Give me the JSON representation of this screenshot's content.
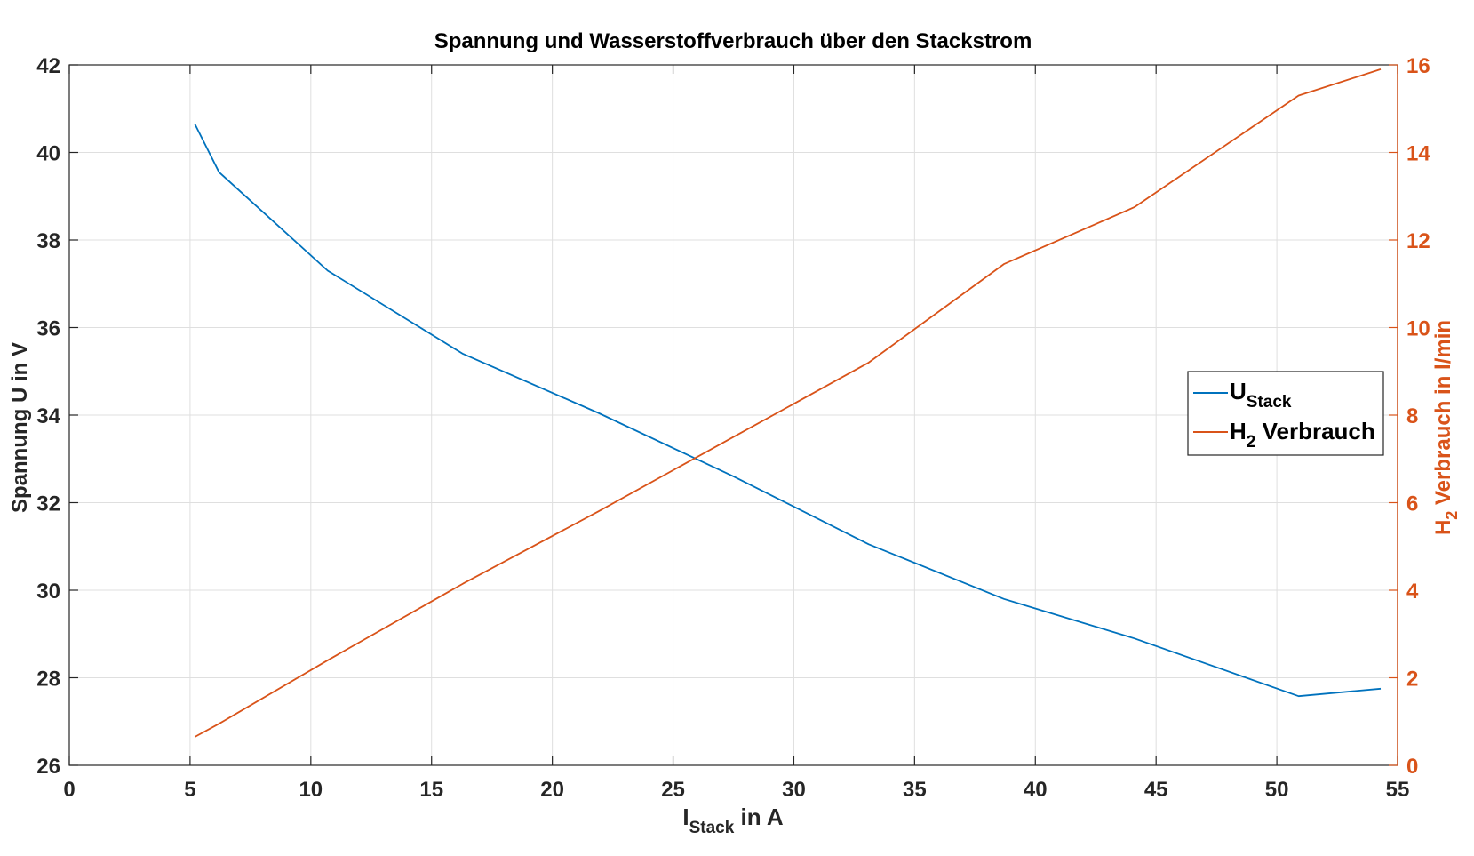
{
  "chart_data": {
    "type": "line",
    "title": "Spannung und Wasserstoffverbrauch über den Stackstrom",
    "xlabel": {
      "main": "I",
      "sub": "Stack",
      "rest": " in A"
    },
    "xlim": [
      0,
      55
    ],
    "xticks": [
      0,
      5,
      10,
      15,
      20,
      25,
      30,
      35,
      40,
      45,
      50,
      55
    ],
    "xtick_labels": [
      "0",
      "5",
      "10",
      "15",
      "20",
      "25",
      "30",
      "35",
      "40",
      "45",
      "50",
      "55"
    ],
    "y_left": {
      "label": "Spannung U in V",
      "lim": [
        26,
        42
      ],
      "ticks": [
        26,
        28,
        30,
        32,
        34,
        36,
        38,
        40,
        42
      ],
      "tick_labels": [
        "26",
        "28",
        "30",
        "32",
        "34",
        "36",
        "38",
        "40",
        "42"
      ]
    },
    "y_right": {
      "label": {
        "main": "H",
        "sub": "2",
        "rest": " Verbrauch in l/min"
      },
      "lim": [
        0,
        16
      ],
      "ticks": [
        0,
        2,
        4,
        6,
        8,
        10,
        12,
        14,
        16
      ],
      "tick_labels": [
        "0",
        "2",
        "4",
        "6",
        "8",
        "10",
        "12",
        "14",
        "16"
      ],
      "color": "#D95319"
    },
    "grid": true,
    "legend_position": "right",
    "series": [
      {
        "name": "U_Stack",
        "legend": {
          "main": "U",
          "sub": "Stack",
          "rest": ""
        },
        "axis": "left",
        "color": "#0072BD",
        "x": [
          5.2,
          6.2,
          10.7,
          16.3,
          21.9,
          27.5,
          33.1,
          38.7,
          44.1,
          50.9,
          54.3
        ],
        "y": [
          40.65,
          39.55,
          37.3,
          35.4,
          34.05,
          32.6,
          31.05,
          29.8,
          28.9,
          27.58,
          27.75
        ]
      },
      {
        "name": "H2 Verbrauch",
        "legend": {
          "main": "H",
          "sub": "2",
          "rest": " Verbrauch"
        },
        "axis": "right",
        "color": "#D95319",
        "x": [
          5.2,
          6.2,
          10.7,
          16.3,
          21.9,
          27.5,
          33.1,
          38.7,
          44.1,
          50.9,
          54.3
        ],
        "y": [
          0.65,
          0.95,
          2.4,
          4.15,
          5.8,
          7.5,
          9.2,
          11.45,
          12.75,
          15.3,
          15.9
        ]
      }
    ]
  }
}
